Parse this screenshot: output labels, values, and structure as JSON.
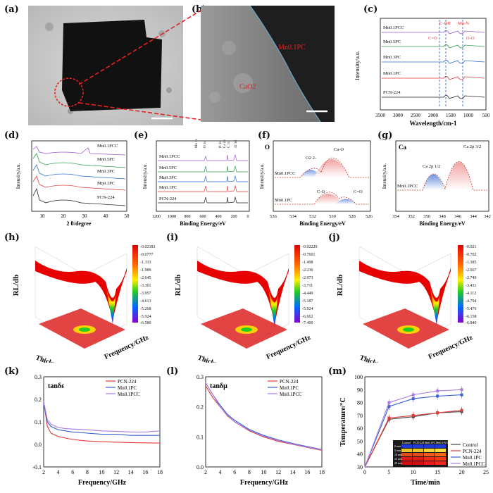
{
  "panel_labels": [
    "(a)",
    "(b)",
    "(c)",
    "(d)",
    "(e)",
    "(f)",
    "(g)",
    "(h)",
    "(i)",
    "(j)",
    "(k)",
    "(l)",
    "(m)"
  ],
  "tem": {
    "b_label_mn": "Mn0.1PC",
    "b_label_cao2": "CaO2"
  },
  "chart_data": [
    {
      "id": "c",
      "type": "line",
      "title": "FTIR",
      "xlabel": "Wavelength/cm-1",
      "ylabel": "Intensity/a.u.",
      "x_ticks": [
        3500,
        3000,
        2500,
        2000,
        1500,
        1000,
        500
      ],
      "xlim": [
        3500,
        500
      ],
      "series": [
        "Mn0.1PCC",
        "Mn0.5PC",
        "Mn0.3PC",
        "Mn0.1PC",
        "PCN-224"
      ],
      "annotations": [
        "C=O",
        "C-OH",
        "Mn-N",
        "O-O"
      ]
    },
    {
      "id": "d",
      "type": "line",
      "title": "XRD",
      "xlabel": "2 θ/degree",
      "ylabel": "Intensity/a.u.",
      "x_ticks": [
        10,
        20,
        30,
        40,
        50
      ],
      "xlim": [
        5,
        50
      ],
      "series": [
        "Mn0.1PCC",
        "Mn0.5PC",
        "Mn0.3PC",
        "Mn0.1PC",
        "PCN-224"
      ]
    },
    {
      "id": "e",
      "type": "line",
      "title": "XPS survey",
      "xlabel": "Binding Energy/eV",
      "ylabel": "Intensity/a.u.",
      "x_ticks": [
        1200,
        1000,
        800,
        600,
        400,
        200,
        0
      ],
      "xlim": [
        1200,
        0
      ],
      "series": [
        "Mn0.1PCC",
        "Mn0.5PC",
        "Mn0.3PC",
        "Mn0.1PC",
        "PCN-224"
      ],
      "annotations": [
        "Mn 1s",
        "O 1s",
        "N 1s",
        "Ca 2p",
        "C 1s",
        "Zr 3d"
      ]
    },
    {
      "id": "f",
      "type": "line",
      "title": "O",
      "xlabel": "Binding Energy/eV",
      "ylabel": "Intensity/a.u.",
      "x_ticks": [
        536,
        534,
        532,
        530,
        528,
        526
      ],
      "xlim": [
        536,
        526
      ],
      "series": [
        "Mn0.1PCC",
        "Mn0.1PC"
      ],
      "annotations": [
        "O2 2-",
        "Ca-O",
        "C-O",
        "C=O"
      ]
    },
    {
      "id": "g",
      "type": "line",
      "title": "Ca",
      "xlabel": "Binding Energy/eV",
      "ylabel": "Intensity/a.u.",
      "x_ticks": [
        354,
        352,
        350,
        348,
        346,
        344,
        342
      ],
      "xlim": [
        354,
        342
      ],
      "series": [
        "Mn0.1PCC"
      ],
      "annotations": [
        "Ca 2p 1/2",
        "Ca 2p 3/2"
      ]
    },
    {
      "id": "h",
      "type": "heatmap",
      "xlabel": "Thickness/mm",
      "ylabel": "RL/db",
      "zlabel": "Frequency/GHz",
      "colorbar": [
        "-0.02183",
        "-0.6777",
        "-1.333",
        "-1.989",
        "-2.645",
        "-3.301",
        "-3.957",
        "-4.613",
        "-5.268",
        "-5.924",
        "-6.580"
      ]
    },
    {
      "id": "i",
      "type": "heatmap",
      "xlabel": "Thickness/mm",
      "ylabel": "RL/db",
      "zlabel": "Frequency/GHz",
      "colorbar": [
        "-0.02229",
        "-0.7601",
        "-1.498",
        "-2.236",
        "-2.973",
        "-3.711",
        "-4.449",
        "-5.187",
        "-5.924",
        "-6.662",
        "-7.400"
      ]
    },
    {
      "id": "j",
      "type": "heatmap",
      "xlabel": "Thickness/mm",
      "ylabel": "RL/db",
      "zlabel": "Frequency/GHz",
      "colorbar": [
        "-0.021",
        "-0.702",
        "-1.385",
        "-2.067",
        "-2.749",
        "-3.431",
        "-4.112",
        "-4.794",
        "-5.476",
        "-6.158",
        "-6.840"
      ]
    },
    {
      "id": "k",
      "type": "line",
      "title": "tanδε",
      "xlabel": "Frequency/GHz",
      "ylabel": "",
      "xlim": [
        2,
        18
      ],
      "ylim": [
        -0.1,
        0.3
      ],
      "x_ticks": [
        2,
        4,
        6,
        8,
        10,
        12,
        14,
        16,
        18
      ],
      "y_ticks": [
        -0.1,
        0.0,
        0.1,
        0.2,
        0.3
      ],
      "series": [
        {
          "name": "PCN-224",
          "color": "#e23b3b",
          "x": [
            2,
            2.5,
            3,
            4,
            5,
            6,
            8,
            10,
            12,
            14,
            16,
            18
          ],
          "y": [
            0.19,
            0.08,
            0.05,
            0.035,
            0.028,
            0.022,
            0.015,
            0.012,
            0.01,
            0.008,
            0.007,
            0.006
          ]
        },
        {
          "name": "Mn0.1PC",
          "color": "#3a5fd6",
          "x": [
            2,
            2.5,
            3,
            4,
            5,
            6,
            8,
            10,
            12,
            14,
            16,
            18
          ],
          "y": [
            0.18,
            0.1,
            0.08,
            0.065,
            0.06,
            0.055,
            0.05,
            0.045,
            0.045,
            0.04,
            0.04,
            0.04
          ]
        },
        {
          "name": "Mn0.1PCC",
          "color": "#a77be0",
          "x": [
            2,
            2.5,
            3,
            4,
            5,
            6,
            8,
            10,
            12,
            14,
            16,
            18
          ],
          "y": [
            0.19,
            0.11,
            0.09,
            0.075,
            0.07,
            0.068,
            0.065,
            0.06,
            0.058,
            0.055,
            0.055,
            0.06
          ]
        }
      ]
    },
    {
      "id": "l",
      "type": "line",
      "title": "tanδμ",
      "xlabel": "Frequency/GHz",
      "ylabel": "",
      "xlim": [
        2,
        18
      ],
      "ylim": [
        0.0,
        0.3
      ],
      "x_ticks": [
        2,
        4,
        6,
        8,
        10,
        12,
        14,
        16,
        18
      ],
      "y_ticks": [
        0.0,
        0.1,
        0.2,
        0.3
      ],
      "series": [
        {
          "name": "PCN-224",
          "color": "#e23b3b",
          "x": [
            2,
            3,
            4,
            5,
            6,
            8,
            10,
            12,
            14,
            16,
            18
          ],
          "y": [
            0.27,
            0.23,
            0.2,
            0.17,
            0.15,
            0.12,
            0.1,
            0.085,
            0.075,
            0.065,
            0.055
          ]
        },
        {
          "name": "Mn0.1PC",
          "color": "#3a5fd6",
          "x": [
            2,
            3,
            4,
            5,
            6,
            8,
            10,
            12,
            14,
            16,
            18
          ],
          "y": [
            0.28,
            0.24,
            0.205,
            0.175,
            0.155,
            0.125,
            0.105,
            0.09,
            0.078,
            0.068,
            0.058
          ]
        },
        {
          "name": "Mn0.1PCC",
          "color": "#a77be0",
          "x": [
            2,
            3,
            4,
            5,
            6,
            8,
            10,
            12,
            14,
            16,
            18
          ],
          "y": [
            0.28,
            0.24,
            0.2,
            0.172,
            0.15,
            0.122,
            0.102,
            0.088,
            0.076,
            0.066,
            0.057
          ]
        }
      ]
    },
    {
      "id": "m",
      "type": "line",
      "title": "",
      "xlabel": "Time/min",
      "ylabel": "Temperature/°C",
      "xlim": [
        0,
        25
      ],
      "ylim": [
        30,
        100
      ],
      "x_ticks": [
        0,
        5,
        10,
        15,
        20,
        25
      ],
      "y_ticks": [
        30,
        40,
        50,
        60,
        70,
        80,
        90,
        100
      ],
      "series": [
        {
          "name": "Control",
          "color": "#444444",
          "x": [
            0,
            5,
            10,
            15,
            20
          ],
          "y": [
            30,
            67,
            69,
            72,
            73
          ]
        },
        {
          "name": "PCN-224",
          "color": "#e23b3b",
          "x": [
            0,
            5,
            10,
            15,
            20
          ],
          "y": [
            30,
            68,
            70,
            72,
            74
          ]
        },
        {
          "name": "Mn0.1PC",
          "color": "#3a5fd6",
          "x": [
            0,
            5,
            10,
            15,
            20
          ],
          "y": [
            30,
            77,
            83,
            85,
            86
          ]
        },
        {
          "name": "Mn0.1PCC",
          "color": "#a77be0",
          "x": [
            0,
            5,
            10,
            15,
            20
          ],
          "y": [
            30,
            80,
            86,
            89,
            90
          ]
        }
      ],
      "inset_labels": [
        "Control",
        "PCN-224",
        "Mn0.1PC",
        "Mn0.1PCC"
      ],
      "inset_rows": [
        "0 min",
        "5 min",
        "10 min",
        "15 min",
        "20 min"
      ]
    }
  ]
}
